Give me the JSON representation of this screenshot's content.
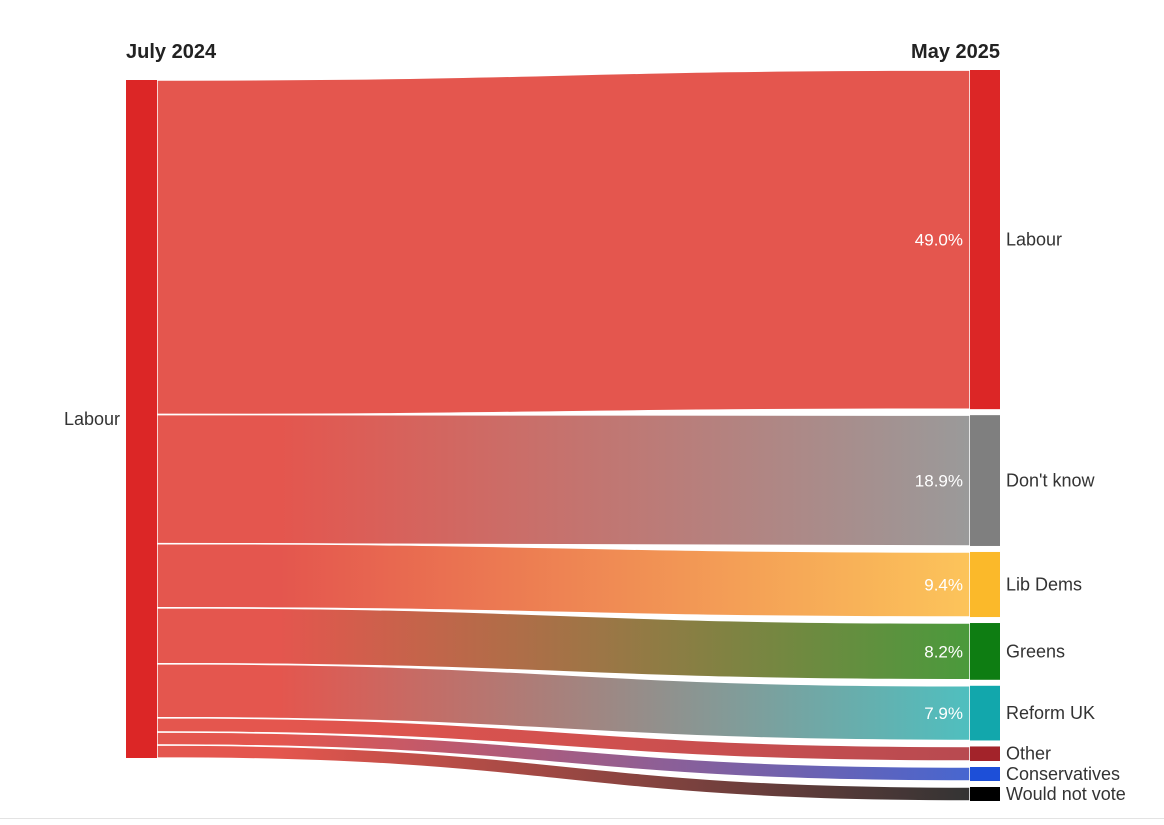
{
  "chart_data": {
    "type": "sankey",
    "source_header": "July 2024",
    "target_header": "May 2025",
    "source": {
      "name": "Labour",
      "color": "#dc2626"
    },
    "targets": [
      {
        "name": "Labour",
        "value": 49.0,
        "label": "49.0%",
        "color": "#dc2626",
        "flow_color": "#e4564e"
      },
      {
        "name": "Don't know",
        "value": 18.9,
        "label": "18.9%",
        "color": "#7f7f7f",
        "flow_color": "#9a9a9a"
      },
      {
        "name": "Lib Dems",
        "value": 9.4,
        "label": "9.4%",
        "color": "#fbb92a",
        "flow_color": "#fcc45a"
      },
      {
        "name": "Greens",
        "value": 8.2,
        "label": "8.2%",
        "color": "#0e7d12",
        "flow_color": "#4a9a3c"
      },
      {
        "name": "Reform UK",
        "value": 7.9,
        "label": "7.9%",
        "color": "#12a7ac",
        "flow_color": "#4fbfbf"
      },
      {
        "name": "Other",
        "value": 2.1,
        "label": "",
        "color": "#a3232a",
        "flow_color": "#b84a50"
      },
      {
        "name": "Conservatives",
        "value": 1.9,
        "label": "",
        "color": "#1d4fd8",
        "flow_color": "#4766d0"
      },
      {
        "name": "Would not vote",
        "value": 1.9,
        "label": "",
        "color": "#000000",
        "flow_color": "#333333"
      }
    ]
  }
}
